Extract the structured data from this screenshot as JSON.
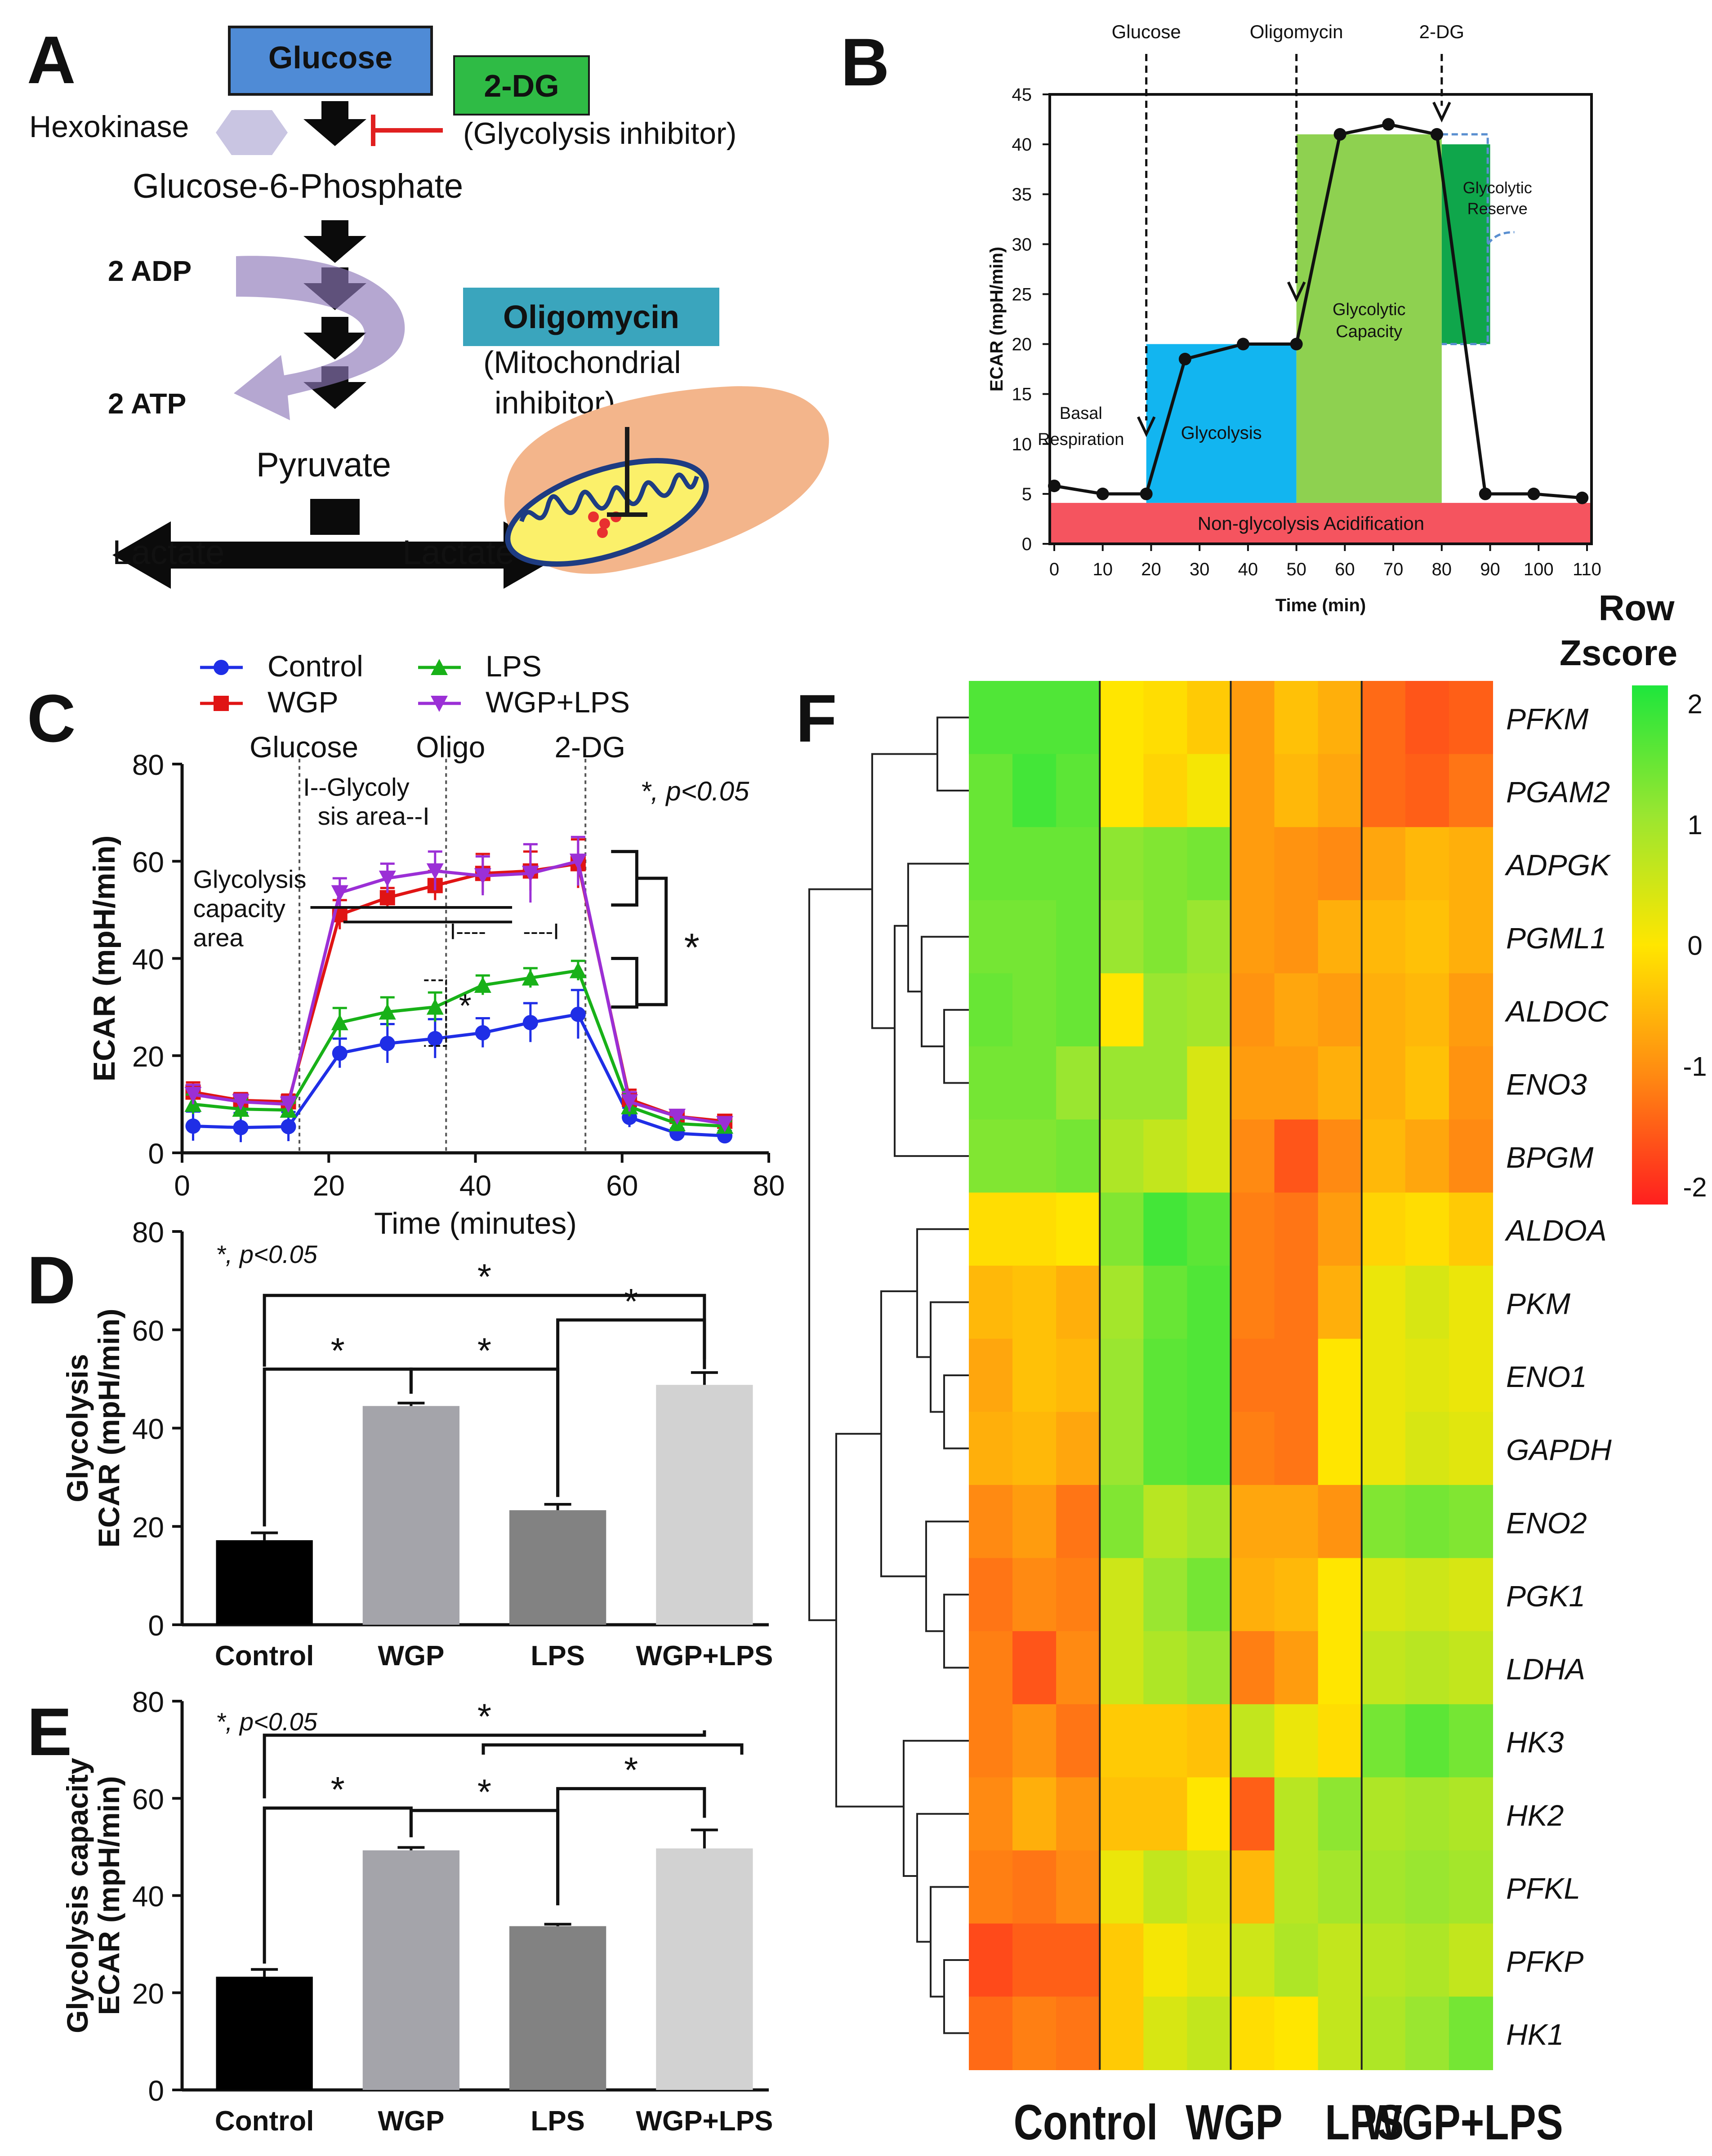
{
  "panel_labels": {
    "a": "A",
    "b": "B",
    "c": "C",
    "d": "D",
    "e": "E",
    "f": "F"
  },
  "colors": {
    "control": "#1f2ee6",
    "wgp": "#e01414",
    "lps": "#18b118",
    "wgplps": "#9b2fd6",
    "bar_control": "#000000",
    "bar_wgp": "#a4a4aa",
    "bar_lps": "#828282",
    "bar_wgplps": "#d2d2d2",
    "glycolysis_fill": "#12b5f0",
    "capacity_fill": "#8ed150",
    "reserve_fill": "#0fa64b",
    "nonglyc_fill": "#f5545f"
  },
  "pathway": {
    "glucose": "Glucose",
    "two_dg": "2-DG",
    "two_dg_note": "(Glycolysis inhibitor)",
    "hexokinase": "Hexokinase",
    "g6p": "Glucose-6-Phosphate",
    "adp": "2 ADP",
    "atp": "2 ATP",
    "pyruvate": "Pyruvate",
    "lactate_left": "Lactate",
    "lactate_right": "Lactate",
    "oligomycin": "Oligomycin",
    "oligo_note_1": "(Mitochondrial",
    "oligo_note_2": "inhibitor)"
  },
  "chart_data": [
    {
      "panel": "B",
      "type": "line",
      "title": "",
      "xlabel": "Time (min)",
      "ylabel": "ECAR (mpH/min)",
      "xlim": [
        0,
        110
      ],
      "ylim": [
        0,
        45
      ],
      "xticks": [
        "0",
        "10",
        "20",
        "30",
        "40",
        "50",
        "60",
        "70",
        "80",
        "90",
        "100",
        "110"
      ],
      "yticks": [
        "0",
        "5",
        "10",
        "15",
        "20",
        "25",
        "30",
        "35",
        "40",
        "45"
      ],
      "x": [
        0,
        10,
        19,
        27,
        39,
        50,
        59,
        69,
        79,
        89,
        99,
        109
      ],
      "values": [
        5.8,
        5.0,
        5.0,
        18.5,
        20.0,
        20.0,
        41.0,
        42.0,
        41.0,
        5.0,
        5.0,
        4.6
      ],
      "injections": [
        {
          "label": "Glucose",
          "x": 19
        },
        {
          "label": "Oligomycin",
          "x": 50
        },
        {
          "label": "2-DG",
          "x": 80
        }
      ],
      "regions": {
        "basal": [
          "Basal",
          "Respiration"
        ],
        "glycolysis": "Glycolysis",
        "capacity": [
          "Glycolytic",
          "Capacity"
        ],
        "reserve": [
          "Glycolytic",
          "Reserve"
        ],
        "nonglycolysis": "Non-glycolysis Acidification"
      }
    },
    {
      "panel": "C",
      "type": "line",
      "xlabel": "Time (minutes)",
      "ylabel": "ECAR (mpH/min)",
      "xlim": [
        0,
        80
      ],
      "ylim": [
        0,
        80
      ],
      "xticks": [
        "0",
        "20",
        "40",
        "60",
        "80"
      ],
      "yticks": [
        "0",
        "20",
        "40",
        "60",
        "80"
      ],
      "x": [
        1.5,
        8,
        14.5,
        21.5,
        28,
        34.5,
        41,
        47.5,
        54,
        61,
        67.5,
        74
      ],
      "series": [
        {
          "name": "Control",
          "values": [
            5.5,
            5.2,
            5.4,
            20.5,
            22.5,
            23.5,
            24.7,
            26.8,
            28.5,
            7.3,
            4.0,
            3.5
          ],
          "errors": [
            3,
            3,
            3,
            3,
            4,
            4,
            3,
            4,
            5,
            2,
            1,
            1
          ]
        },
        {
          "name": "WGP",
          "values": [
            12.5,
            10.8,
            10.5,
            49.0,
            52.5,
            55.0,
            57.5,
            58.0,
            59.5,
            11.0,
            7.5,
            6.5
          ],
          "errors": [
            2,
            1.5,
            1.5,
            3,
            2,
            3,
            4,
            4,
            5,
            2,
            1,
            1
          ]
        },
        {
          "name": "LPS",
          "values": [
            10.0,
            9.0,
            8.8,
            26.8,
            29.0,
            30.0,
            34.5,
            36.0,
            37.5,
            9.5,
            6.0,
            5.5
          ],
          "errors": [
            2,
            2,
            1.5,
            3,
            3,
            3,
            2,
            2,
            2,
            2,
            1,
            1
          ]
        },
        {
          "name": "WGP+LPS",
          "values": [
            12.0,
            10.5,
            10.0,
            53.5,
            56.5,
            58.0,
            57.0,
            57.5,
            60.0,
            10.5,
            7.5,
            6.0
          ],
          "errors": [
            2,
            1.5,
            1.5,
            3,
            3,
            4,
            4,
            6,
            5,
            2,
            1,
            1
          ]
        }
      ],
      "injections": [
        {
          "label": "Glucose",
          "x": 16
        },
        {
          "label": "Oligo",
          "x": 36
        },
        {
          "label": "2-DG",
          "x": 55
        }
      ],
      "annotations": {
        "glycolysis_area": [
          "I--Glycoly",
          "sis area--I"
        ],
        "capacity_area": [
          "Glycolysis",
          "capacity",
          "area"
        ],
        "pvalue": "*, p<0.05",
        "star": "*",
        "dash_1": "I----",
        "dash_2": "----I"
      },
      "legend_location": "top"
    },
    {
      "panel": "D",
      "type": "bar",
      "ylabel": [
        "Glycolysis",
        "ECAR (mpH/min)"
      ],
      "categories": [
        "Control",
        "WGP",
        "LPS",
        "WGP+LPS"
      ],
      "values": [
        17.2,
        44.5,
        23.3,
        48.8
      ],
      "errors": [
        1.5,
        0.6,
        1.2,
        2.5
      ],
      "ylim": [
        0,
        80
      ],
      "yticks": [
        "0",
        "20",
        "40",
        "60",
        "80"
      ],
      "pvalue": "*, p<0.05",
      "star": "*"
    },
    {
      "panel": "E",
      "type": "bar",
      "ylabel": [
        "Glycolysis capacity",
        "ECAR (mpH/min)"
      ],
      "categories": [
        "Control",
        "WGP",
        "LPS",
        "WGP+LPS"
      ],
      "values": [
        23.3,
        49.3,
        33.7,
        49.7
      ],
      "errors": [
        1.5,
        0.6,
        0.4,
        3.8
      ],
      "ylim": [
        0,
        80
      ],
      "yticks": [
        "0",
        "20",
        "40",
        "60",
        "80"
      ],
      "pvalue": "*, p<0.05",
      "star": "*"
    },
    {
      "panel": "F",
      "type": "heatmap",
      "title": [
        "Row",
        "Zscore"
      ],
      "column_groups": [
        "Control",
        "WGP",
        "LPS",
        "WGP+LPS"
      ],
      "colorbar_ticks": [
        "2",
        "1",
        "0",
        "-1",
        "-2"
      ],
      "colorbar_range": [
        -2,
        2
      ],
      "rows": [
        "PFKM",
        "PGAM2",
        "ADPGK",
        "PGML1",
        "ALDOC",
        "ENO3",
        "BPGM",
        "ALDOA",
        "PKM",
        "ENO1",
        "GAPDH",
        "ENO2",
        "PGK1",
        "LDHA",
        "HK3",
        "HK2",
        "PFKL",
        "PFKP",
        "HK1"
      ],
      "values": [
        [
          1.6,
          1.6,
          1.6,
          0.0,
          -0.1,
          -0.3,
          -0.8,
          -0.4,
          -0.6,
          -1.3,
          -1.5,
          -1.4
        ],
        [
          1.4,
          1.7,
          1.5,
          0.0,
          -0.2,
          0.1,
          -0.8,
          -0.5,
          -0.7,
          -1.3,
          -1.4,
          -1.2
        ],
        [
          1.4,
          1.4,
          1.4,
          1.1,
          1.2,
          1.3,
          -0.8,
          -0.9,
          -1.0,
          -0.7,
          -0.5,
          -0.6
        ],
        [
          1.3,
          1.3,
          1.4,
          1.0,
          1.2,
          1.0,
          -0.8,
          -0.9,
          -0.6,
          -0.5,
          -0.4,
          -0.6
        ],
        [
          1.4,
          1.3,
          1.4,
          0.0,
          1.0,
          0.9,
          -0.9,
          -0.7,
          -0.8,
          -0.6,
          -0.5,
          -0.8
        ],
        [
          1.3,
          1.3,
          1.0,
          1.0,
          1.0,
          0.4,
          -0.8,
          -0.8,
          -0.6,
          -0.6,
          -0.4,
          -0.9
        ],
        [
          1.2,
          1.2,
          1.3,
          0.8,
          0.6,
          0.4,
          -1.0,
          -1.5,
          -1.0,
          -0.5,
          -0.7,
          -1.0
        ],
        [
          -0.1,
          -0.1,
          0.0,
          1.2,
          1.7,
          1.5,
          -1.1,
          -1.2,
          -0.8,
          -0.2,
          -0.1,
          -0.3
        ],
        [
          -0.5,
          -0.4,
          -0.6,
          0.9,
          1.4,
          1.6,
          -1.1,
          -1.2,
          -0.6,
          0.2,
          0.4,
          0.2
        ],
        [
          -0.7,
          -0.4,
          -0.5,
          1.0,
          1.5,
          1.6,
          -1.2,
          -1.2,
          0.0,
          0.2,
          0.3,
          0.2
        ],
        [
          -0.6,
          -0.5,
          -0.7,
          1.0,
          1.5,
          1.6,
          -1.1,
          -1.2,
          0.0,
          0.2,
          0.4,
          0.3
        ],
        [
          -1.0,
          -0.8,
          -1.2,
          1.2,
          0.7,
          0.9,
          -0.7,
          -0.7,
          -0.9,
          1.2,
          1.3,
          1.2
        ],
        [
          -1.2,
          -1.0,
          -1.1,
          0.5,
          1.0,
          1.3,
          -0.6,
          -0.5,
          0.0,
          0.4,
          0.5,
          0.4
        ],
        [
          -1.1,
          -1.5,
          -1.0,
          0.5,
          0.8,
          1.0,
          -1.1,
          -0.8,
          0.0,
          0.6,
          0.7,
          0.6
        ],
        [
          -1.1,
          -0.9,
          -1.2,
          -0.3,
          -0.3,
          -0.4,
          0.6,
          0.2,
          -0.1,
          1.3,
          1.5,
          1.3
        ],
        [
          -1.0,
          -0.6,
          -0.9,
          -0.4,
          -0.4,
          0.0,
          -1.4,
          0.7,
          1.1,
          0.8,
          0.9,
          0.8
        ],
        [
          -1.1,
          -1.2,
          -1.0,
          0.2,
          0.6,
          0.4,
          -0.5,
          0.7,
          0.9,
          0.9,
          1.0,
          0.9
        ],
        [
          -1.6,
          -1.4,
          -1.4,
          -0.3,
          0.1,
          0.3,
          0.5,
          0.8,
          0.6,
          0.7,
          0.8,
          0.6
        ],
        [
          -1.3,
          -1.1,
          -1.2,
          -0.3,
          0.4,
          0.6,
          -0.1,
          0.0,
          0.6,
          0.8,
          1.0,
          1.3
        ]
      ]
    }
  ]
}
